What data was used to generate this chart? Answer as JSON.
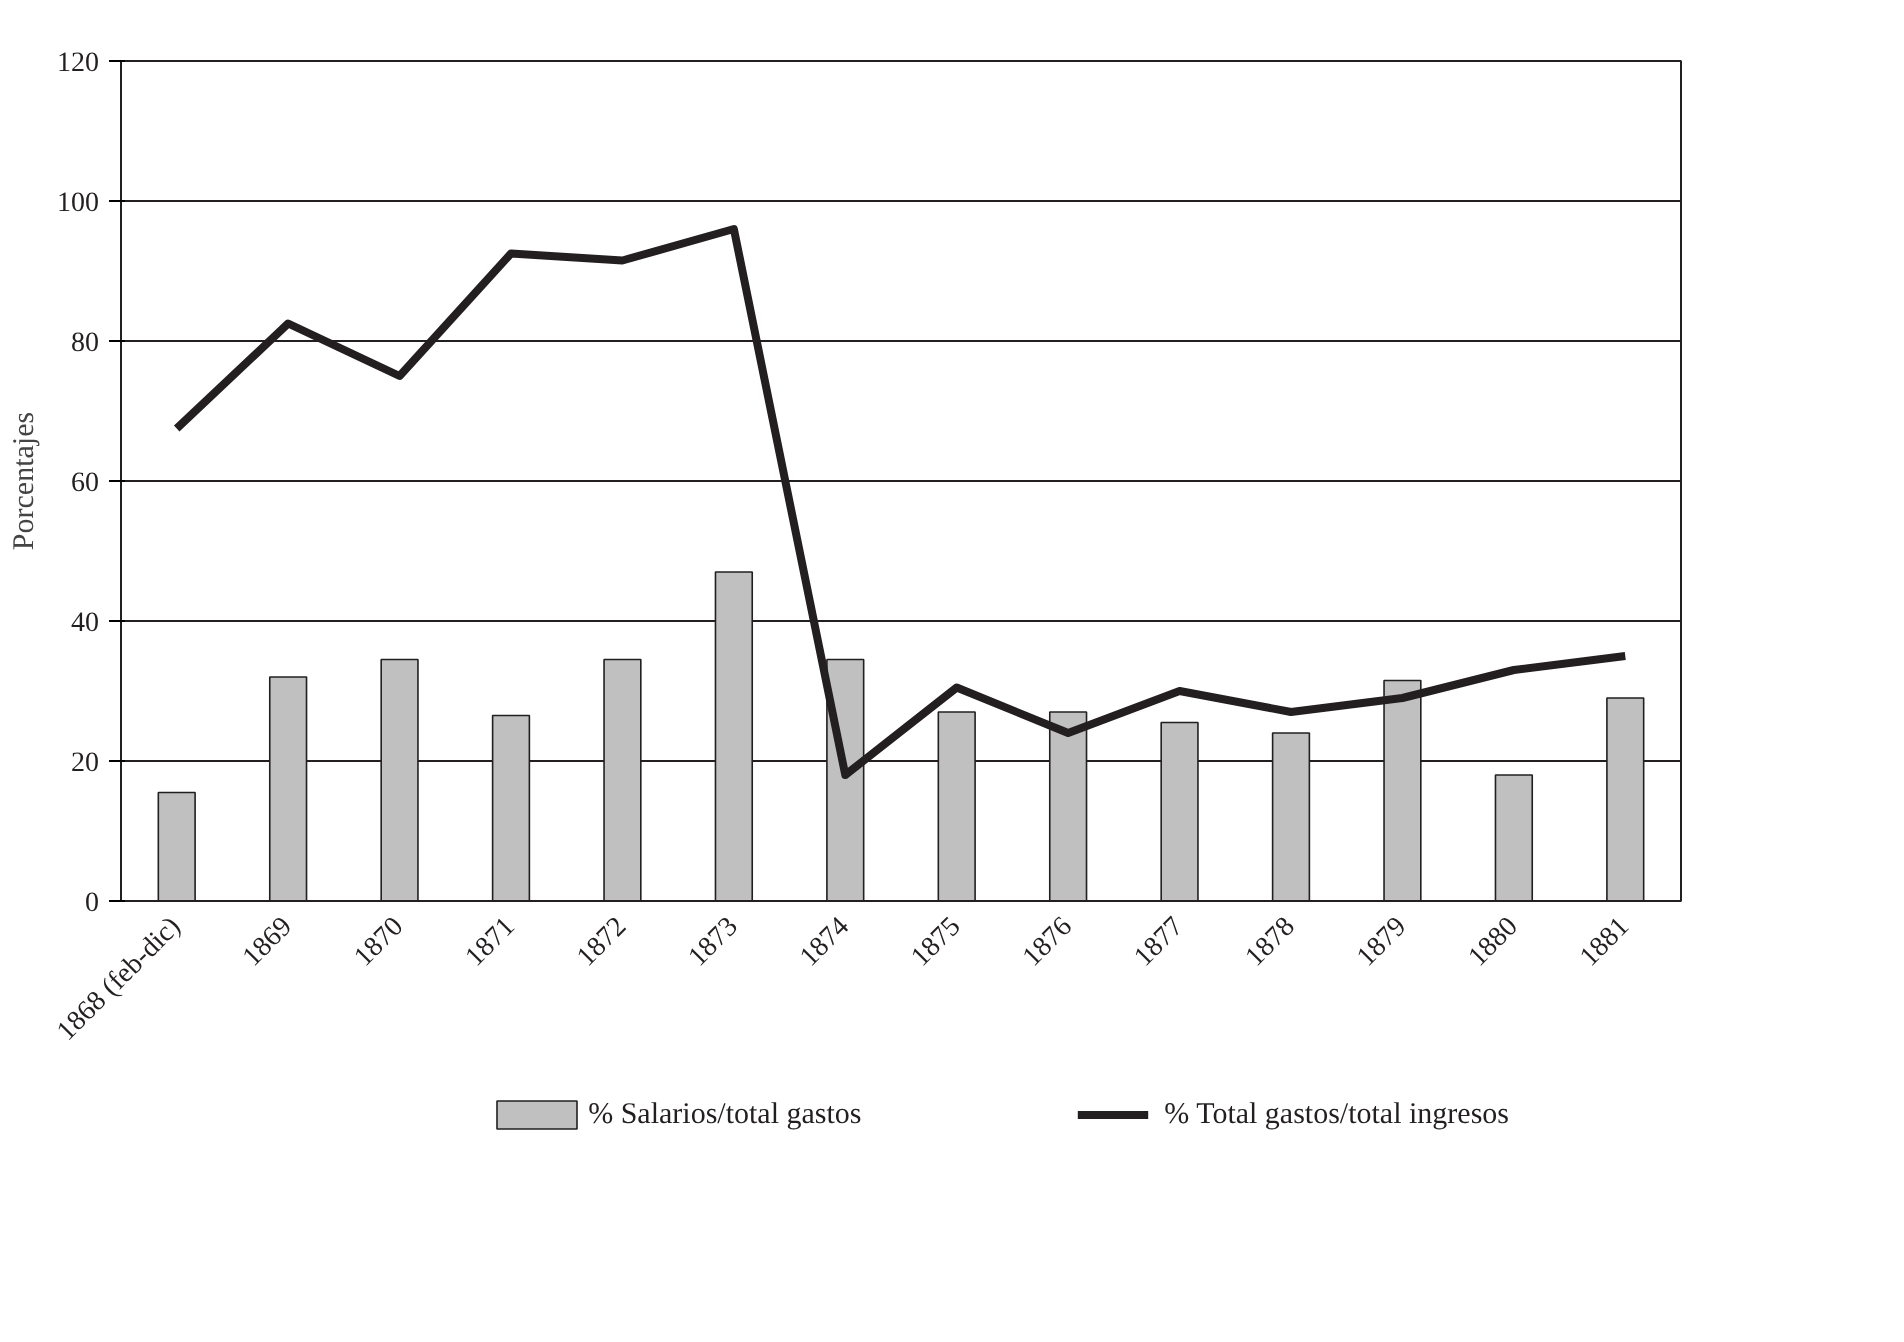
{
  "chart_data": {
    "type": "bar",
    "ylabel": "Porcentajes",
    "categories": [
      "1868 (feb-dic)",
      "1869",
      "1870",
      "1871",
      "1872",
      "1873",
      "1874",
      "1875",
      "1876",
      "1877",
      "1878",
      "1879",
      "1880",
      "1881"
    ],
    "series": [
      {
        "name": "% Salarios/total gastos",
        "color": "#c0c0c0",
        "values": [
          15.5,
          32,
          34.5,
          26.5,
          34.5,
          47,
          34.5,
          27,
          27,
          25.5,
          24,
          31.5,
          18,
          29
        ]
      },
      {
        "name": "% Total gastos/total ingresos",
        "type": "line",
        "color": "#231f20",
        "values": [
          67.5,
          82.5,
          75,
          92.5,
          91.5,
          96,
          18,
          30.5,
          24,
          30,
          27,
          29,
          33,
          35
        ]
      }
    ],
    "ylim": [
      0,
      120
    ],
    "yticks": [
      0,
      20,
      40,
      60,
      80,
      100,
      120
    ],
    "grid": "y",
    "legend": "bottom"
  }
}
